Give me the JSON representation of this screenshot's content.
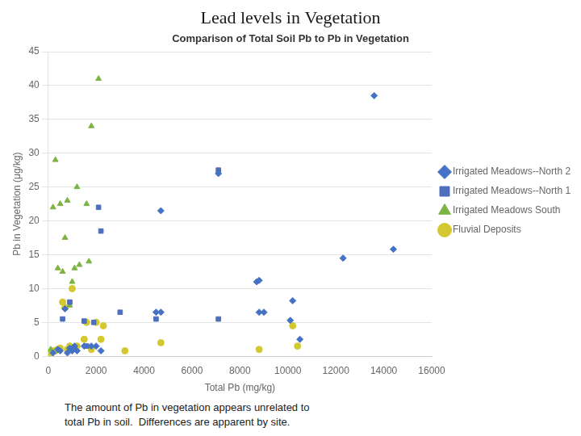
{
  "chart_data": {
    "type": "scatter",
    "title": "Lead levels in Vegetation",
    "subtitle": "Comparison of Total Soil Pb to Pb in Vegetation",
    "xlabel": "Total Pb (mg/kg)",
    "ylabel": "Pb in Vegetation (μg/kg)",
    "annotations": [
      "The amount of Pb in vegetation appears unrelated to",
      "total Pb in soil.  Differences are apparent by site."
    ],
    "xlim": [
      0,
      16000
    ],
    "ylim": [
      0,
      45
    ],
    "xticks": [
      0,
      2000,
      4000,
      6000,
      8000,
      10000,
      12000,
      14000,
      16000
    ],
    "yticks": [
      0,
      5,
      10,
      15,
      20,
      25,
      30,
      35,
      40,
      45
    ],
    "grid": "y",
    "legend": "right",
    "series": [
      {
        "name": "Irrigated Meadows--North 2",
        "color": "#4472c4",
        "marker": "diamond",
        "x": [
          200,
          400,
          500,
          700,
          800,
          900,
          1000,
          1100,
          1200,
          1500,
          1800,
          2000,
          2200,
          4500,
          4700,
          4700,
          7100,
          8700,
          8800,
          8800,
          9000,
          10100,
          10200,
          10500,
          12300,
          13600,
          14400
        ],
        "values": [
          0.5,
          1.0,
          0.8,
          7.0,
          0.5,
          1.2,
          0.8,
          1.5,
          0.8,
          1.5,
          1.5,
          1.5,
          0.8,
          6.5,
          6.5,
          21.5,
          27.0,
          11.0,
          11.2,
          6.5,
          6.5,
          5.3,
          8.2,
          2.5,
          14.5,
          38.5,
          15.8
        ]
      },
      {
        "name": "Irrigated Meadows--North 1",
        "color": "#4e6fbe",
        "marker": "square",
        "x": [
          600,
          900,
          1500,
          1600,
          1900,
          2100,
          2200,
          3000,
          4500,
          7100,
          7100
        ],
        "values": [
          5.5,
          8.0,
          5.2,
          1.5,
          5.0,
          22.0,
          18.5,
          6.5,
          5.5,
          27.5,
          5.5
        ]
      },
      {
        "name": "Irrigated Meadows South",
        "color": "#7cb342",
        "marker": "triangle",
        "x": [
          100,
          200,
          300,
          400,
          500,
          600,
          700,
          800,
          900,
          1000,
          1100,
          1200,
          1300,
          1600,
          1700,
          1800,
          2100
        ],
        "values": [
          1.0,
          22.0,
          29.0,
          13.0,
          22.5,
          12.5,
          17.5,
          23.0,
          7.5,
          11.0,
          13.0,
          25.0,
          13.5,
          22.5,
          14.0,
          34.0,
          41.0
        ]
      },
      {
        "name": "Fluvial Deposits",
        "color": "#d4c830",
        "marker": "circle",
        "x": [
          100,
          200,
          300,
          400,
          500,
          600,
          700,
          800,
          900,
          1000,
          1100,
          1200,
          1500,
          1600,
          1800,
          2000,
          2200,
          2300,
          3200,
          4700,
          8800,
          10200,
          10400
        ],
        "values": [
          0.5,
          0.8,
          0.8,
          1.0,
          1.2,
          8.0,
          7.2,
          1.0,
          1.5,
          10.0,
          1.2,
          1.5,
          2.5,
          5.0,
          1.0,
          5.0,
          2.5,
          4.5,
          0.8,
          2.0,
          1.0,
          4.5,
          1.5
        ]
      }
    ]
  }
}
